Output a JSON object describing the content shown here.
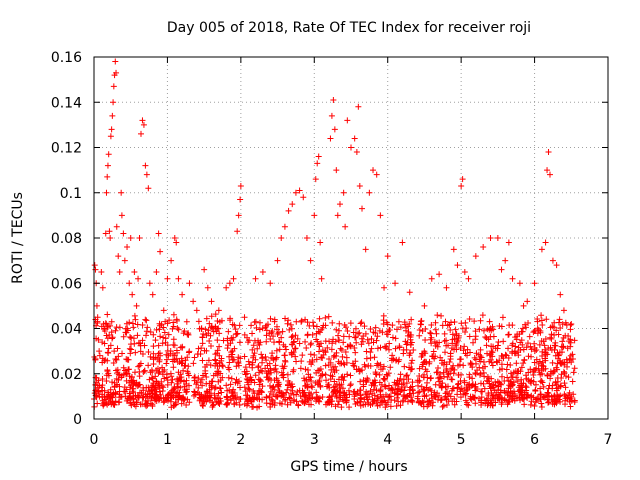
{
  "chart_data": {
    "type": "scatter",
    "title": "Day 005 of 2018, Rate Of TEC Index for receiver roji",
    "xlabel": "GPS time / hours",
    "ylabel": "ROTI / TECUs",
    "xlim": [
      0,
      7
    ],
    "ylim": [
      0,
      0.16
    ],
    "x_ticks": [
      "0",
      "1",
      "2",
      "3",
      "4",
      "5",
      "6",
      "7"
    ],
    "y_ticks": [
      "0",
      "0.02",
      "0.04",
      "0.06",
      "0.08",
      "0.1",
      "0.12",
      "0.14",
      "0.16"
    ],
    "grid": true,
    "marker": "+",
    "color": "#ff0000",
    "series": [
      {
        "name": "ROTI",
        "points": [
          [
            0.01,
            0.068
          ],
          [
            0.02,
            0.066
          ],
          [
            0.03,
            0.06
          ],
          [
            0.04,
            0.05
          ],
          [
            0.05,
            0.045
          ],
          [
            0.06,
            0.035
          ],
          [
            0.07,
            0.03
          ],
          [
            0.08,
            0.028
          ],
          [
            0.1,
            0.065
          ],
          [
            0.12,
            0.058
          ],
          [
            0.14,
            0.04
          ],
          [
            0.16,
            0.082
          ],
          [
            0.17,
            0.1
          ],
          [
            0.18,
            0.107
          ],
          [
            0.19,
            0.112
          ],
          [
            0.2,
            0.117
          ],
          [
            0.21,
            0.083
          ],
          [
            0.22,
            0.08
          ],
          [
            0.23,
            0.125
          ],
          [
            0.24,
            0.128
          ],
          [
            0.25,
            0.134
          ],
          [
            0.26,
            0.14
          ],
          [
            0.27,
            0.147
          ],
          [
            0.28,
            0.152
          ],
          [
            0.29,
            0.158
          ],
          [
            0.3,
            0.153
          ],
          [
            0.31,
            0.085
          ],
          [
            0.33,
            0.072
          ],
          [
            0.35,
            0.065
          ],
          [
            0.37,
            0.1
          ],
          [
            0.38,
            0.09
          ],
          [
            0.4,
            0.082
          ],
          [
            0.42,
            0.07
          ],
          [
            0.45,
            0.076
          ],
          [
            0.48,
            0.06
          ],
          [
            0.5,
            0.08
          ],
          [
            0.52,
            0.055
          ],
          [
            0.55,
            0.065
          ],
          [
            0.58,
            0.05
          ],
          [
            0.6,
            0.062
          ],
          [
            0.62,
            0.08
          ],
          [
            0.64,
            0.126
          ],
          [
            0.66,
            0.132
          ],
          [
            0.68,
            0.13
          ],
          [
            0.7,
            0.112
          ],
          [
            0.72,
            0.108
          ],
          [
            0.74,
            0.102
          ],
          [
            0.76,
            0.06
          ],
          [
            0.8,
            0.055
          ],
          [
            0.85,
            0.065
          ],
          [
            0.88,
            0.082
          ],
          [
            0.9,
            0.074
          ],
          [
            0.95,
            0.048
          ],
          [
            1.0,
            0.062
          ],
          [
            1.05,
            0.07
          ],
          [
            1.1,
            0.08
          ],
          [
            1.12,
            0.078
          ],
          [
            1.15,
            0.062
          ],
          [
            1.2,
            0.055
          ],
          [
            1.3,
            0.06
          ],
          [
            1.35,
            0.052
          ],
          [
            1.4,
            0.048
          ],
          [
            1.5,
            0.066
          ],
          [
            1.55,
            0.058
          ],
          [
            1.6,
            0.052
          ],
          [
            1.7,
            0.048
          ],
          [
            1.8,
            0.058
          ],
          [
            1.85,
            0.06
          ],
          [
            1.9,
            0.062
          ],
          [
            1.95,
            0.083
          ],
          [
            1.97,
            0.09
          ],
          [
            1.99,
            0.097
          ],
          [
            2.0,
            0.103
          ],
          [
            2.05,
            0.045
          ],
          [
            2.2,
            0.062
          ],
          [
            2.3,
            0.065
          ],
          [
            2.4,
            0.06
          ],
          [
            2.5,
            0.07
          ],
          [
            2.55,
            0.08
          ],
          [
            2.6,
            0.085
          ],
          [
            2.65,
            0.092
          ],
          [
            2.7,
            0.095
          ],
          [
            2.75,
            0.1
          ],
          [
            2.8,
            0.101
          ],
          [
            2.85,
            0.098
          ],
          [
            2.9,
            0.08
          ],
          [
            2.95,
            0.07
          ],
          [
            3.0,
            0.09
          ],
          [
            3.02,
            0.106
          ],
          [
            3.04,
            0.113
          ],
          [
            3.06,
            0.116
          ],
          [
            3.08,
            0.078
          ],
          [
            3.1,
            0.062
          ],
          [
            3.15,
            0.03
          ],
          [
            3.22,
            0.124
          ],
          [
            3.24,
            0.134
          ],
          [
            3.26,
            0.141
          ],
          [
            3.28,
            0.128
          ],
          [
            3.3,
            0.11
          ],
          [
            3.32,
            0.09
          ],
          [
            3.35,
            0.095
          ],
          [
            3.4,
            0.1
          ],
          [
            3.42,
            0.085
          ],
          [
            3.45,
            0.132
          ],
          [
            3.5,
            0.12
          ],
          [
            3.55,
            0.124
          ],
          [
            3.58,
            0.118
          ],
          [
            3.6,
            0.138
          ],
          [
            3.62,
            0.103
          ],
          [
            3.65,
            0.093
          ],
          [
            3.7,
            0.075
          ],
          [
            3.75,
            0.1
          ],
          [
            3.8,
            0.11
          ],
          [
            3.85,
            0.108
          ],
          [
            3.9,
            0.09
          ],
          [
            3.95,
            0.058
          ],
          [
            4.0,
            0.072
          ],
          [
            4.1,
            0.06
          ],
          [
            4.2,
            0.078
          ],
          [
            4.3,
            0.056
          ],
          [
            4.5,
            0.05
          ],
          [
            4.6,
            0.062
          ],
          [
            4.7,
            0.064
          ],
          [
            4.8,
            0.058
          ],
          [
            4.9,
            0.075
          ],
          [
            4.95,
            0.068
          ],
          [
            5.0,
            0.103
          ],
          [
            5.02,
            0.106
          ],
          [
            5.05,
            0.065
          ],
          [
            5.1,
            0.062
          ],
          [
            5.2,
            0.072
          ],
          [
            5.3,
            0.076
          ],
          [
            5.4,
            0.08
          ],
          [
            5.5,
            0.08
          ],
          [
            5.55,
            0.066
          ],
          [
            5.6,
            0.07
          ],
          [
            5.65,
            0.078
          ],
          [
            5.7,
            0.062
          ],
          [
            5.8,
            0.06
          ],
          [
            5.85,
            0.05
          ],
          [
            5.9,
            0.052
          ],
          [
            6.0,
            0.06
          ],
          [
            6.1,
            0.075
          ],
          [
            6.15,
            0.078
          ],
          [
            6.17,
            0.11
          ],
          [
            6.19,
            0.118
          ],
          [
            6.21,
            0.108
          ],
          [
            6.25,
            0.07
          ],
          [
            6.3,
            0.068
          ],
          [
            6.35,
            0.055
          ],
          [
            6.4,
            0.048
          ],
          [
            6.5,
            0.042
          ]
        ],
        "envelope": {
          "x_range": [
            0.0,
            6.55
          ],
          "gaps": [
            [
              0.08,
              0.1
            ],
            [
              1.3,
              1.35
            ],
            [
              1.77,
              1.8
            ],
            [
              2.0,
              2.05
            ],
            [
              2.3,
              2.33
            ],
            [
              3.13,
              3.15
            ],
            [
              3.5,
              3.52
            ],
            [
              4.35,
              4.4
            ],
            [
              5.22,
              5.24
            ]
          ],
          "baseline": [
            0.005,
            0.01
          ],
          "dense_band": [
            0.008,
            0.045
          ]
        }
      }
    ]
  }
}
